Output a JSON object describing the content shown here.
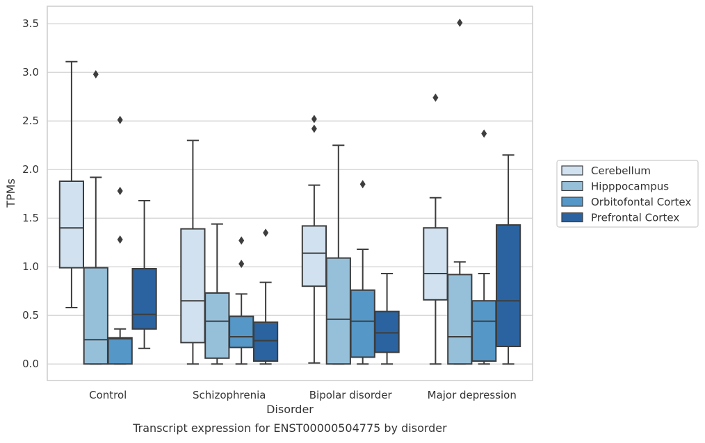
{
  "chart_data": {
    "type": "box",
    "title": "",
    "caption": "Transcript expression for ENST00000504775 by disorder",
    "xlabel": "Disorder",
    "ylabel": "TPMs",
    "ylim": [
      -0.17,
      3.68
    ],
    "yticks": [
      "0.0",
      "0.5",
      "1.0",
      "1.5",
      "2.0",
      "2.5",
      "3.0",
      "3.5"
    ],
    "grid": "horizontal",
    "legend_position": "right",
    "categories": [
      "Control",
      "Schizophrenia",
      "Bipolar disorder",
      "Major depression"
    ],
    "series": [
      {
        "name": "Cerebellum",
        "color": "#d1e1f0",
        "boxes": [
          {
            "whislo": 0.58,
            "q1": 0.99,
            "med": 1.4,
            "q3": 1.88,
            "whishi": 3.11,
            "fliers": []
          },
          {
            "whislo": 0.0,
            "q1": 0.22,
            "med": 0.65,
            "q3": 1.39,
            "whishi": 2.3,
            "fliers": []
          },
          {
            "whislo": 0.01,
            "q1": 0.8,
            "med": 1.14,
            "q3": 1.42,
            "whishi": 1.84,
            "fliers": [
              2.42,
              2.52
            ]
          },
          {
            "whislo": 0.0,
            "q1": 0.66,
            "med": 0.93,
            "q3": 1.4,
            "whishi": 1.71,
            "fliers": [
              2.74
            ]
          }
        ]
      },
      {
        "name": "Hipppocampus",
        "color": "#96c0da",
        "boxes": [
          {
            "whislo": 0.0,
            "q1": 0.0,
            "med": 0.25,
            "q3": 0.99,
            "whishi": 1.92,
            "fliers": [
              2.98
            ]
          },
          {
            "whislo": 0.0,
            "q1": 0.06,
            "med": 0.44,
            "q3": 0.73,
            "whishi": 1.44,
            "fliers": []
          },
          {
            "whislo": 0.0,
            "q1": 0.0,
            "med": 0.46,
            "q3": 1.09,
            "whishi": 2.25,
            "fliers": []
          },
          {
            "whislo": 0.0,
            "q1": 0.0,
            "med": 0.28,
            "q3": 0.92,
            "whishi": 1.05,
            "fliers": [
              3.51
            ]
          }
        ]
      },
      {
        "name": "Orbitofontal Cortex",
        "color": "#5597c7",
        "boxes": [
          {
            "whislo": 0.0,
            "q1": 0.0,
            "med": 0.26,
            "q3": 0.27,
            "whishi": 0.36,
            "fliers": [
              1.28,
              1.78,
              2.51
            ]
          },
          {
            "whislo": 0.0,
            "q1": 0.17,
            "med": 0.28,
            "q3": 0.49,
            "whishi": 0.72,
            "fliers": [
              1.03,
              1.27
            ]
          },
          {
            "whislo": 0.0,
            "q1": 0.07,
            "med": 0.44,
            "q3": 0.76,
            "whishi": 1.18,
            "fliers": [
              1.85
            ]
          },
          {
            "whislo": 0.0,
            "q1": 0.03,
            "med": 0.44,
            "q3": 0.65,
            "whishi": 0.93,
            "fliers": [
              2.37
            ]
          }
        ]
      },
      {
        "name": "Prefrontal Cortex",
        "color": "#2a63a0",
        "boxes": [
          {
            "whislo": 0.16,
            "q1": 0.36,
            "med": 0.51,
            "q3": 0.98,
            "whishi": 1.68,
            "fliers": []
          },
          {
            "whislo": 0.0,
            "q1": 0.03,
            "med": 0.24,
            "q3": 0.43,
            "whishi": 0.84,
            "fliers": [
              1.35
            ]
          },
          {
            "whislo": 0.0,
            "q1": 0.12,
            "med": 0.32,
            "q3": 0.54,
            "whishi": 0.93,
            "fliers": []
          },
          {
            "whislo": 0.0,
            "q1": 0.18,
            "med": 0.65,
            "q3": 1.43,
            "whishi": 2.15,
            "fliers": []
          }
        ]
      }
    ]
  }
}
